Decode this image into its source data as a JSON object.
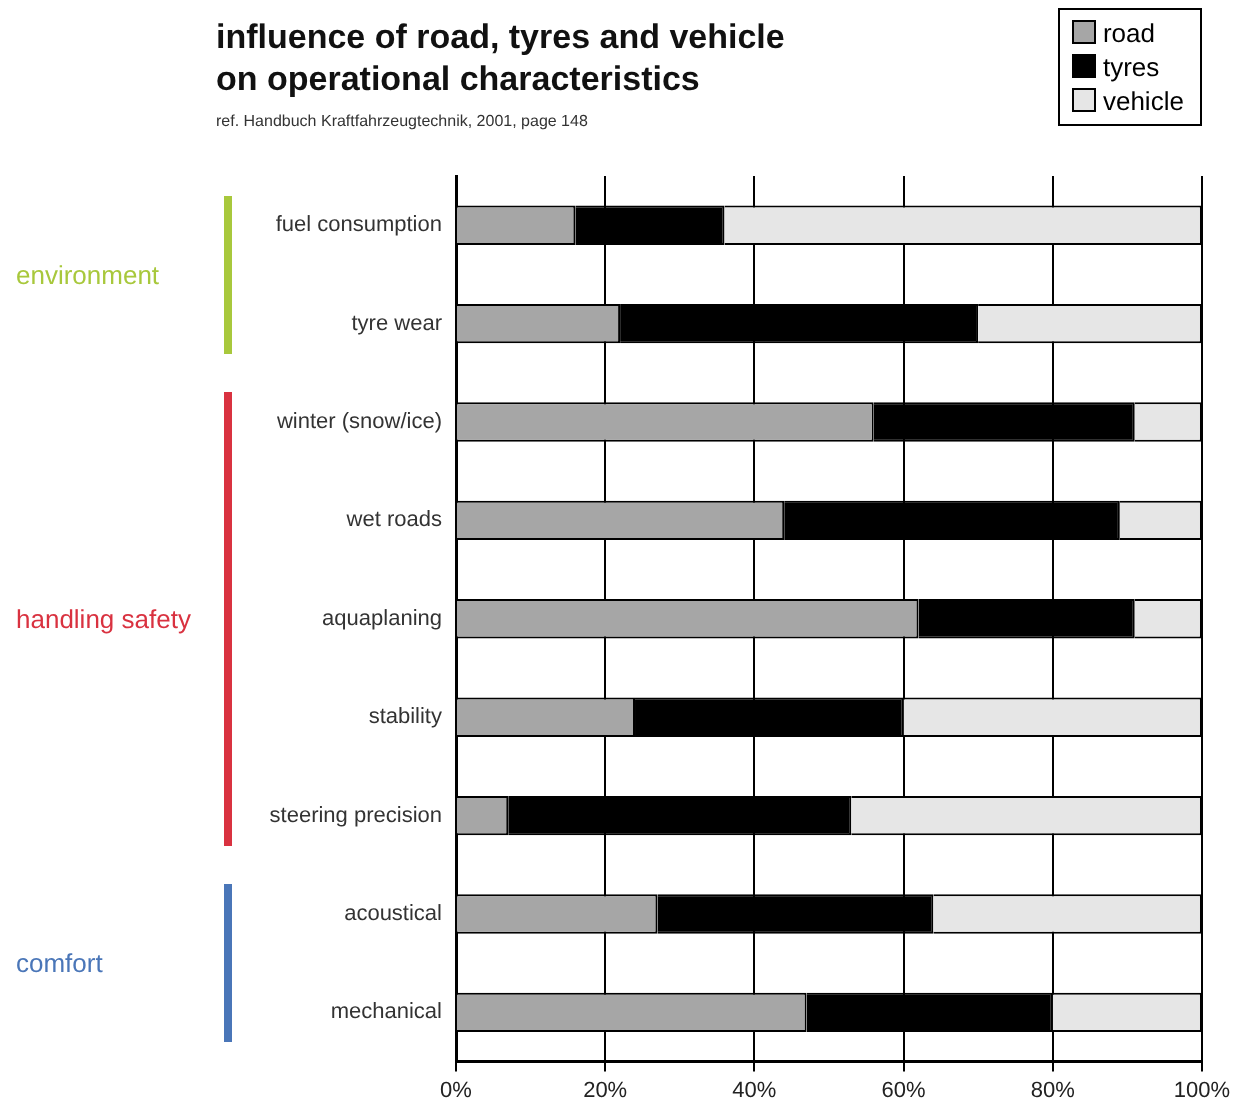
{
  "chart_data": {
    "type": "bar",
    "orientation": "horizontal",
    "stacked": true,
    "title": "influence of road, tyres and vehicle on operational characteristics",
    "annotations": [
      "ref. Handbuch Kraftfahrzeugtechnik, 2001, page 148",
      "environment",
      "handling safety",
      "comfort"
    ],
    "categories": [
      "fuel consumption",
      "tyre wear",
      "winter (snow/ice)",
      "wet roads",
      "aquaplaning",
      "stability",
      "steering precision",
      "acoustical",
      "mechanical"
    ],
    "series": [
      {
        "name": "road",
        "color": "#a6a6a6",
        "values": [
          16,
          22,
          56,
          44,
          62,
          24,
          7,
          27,
          47
        ]
      },
      {
        "name": "tyres",
        "color": "#000000",
        "values": [
          20,
          48,
          35,
          45,
          29,
          36,
          46,
          37,
          33
        ]
      },
      {
        "name": "vehicle",
        "color": "#e6e6e6",
        "values": [
          64,
          30,
          9,
          11,
          9,
          40,
          47,
          36,
          20
        ]
      }
    ],
    "xlim": [
      0,
      100
    ],
    "xticks": [
      {
        "value": 0,
        "label": "0%"
      },
      {
        "value": 20,
        "label": "20%"
      },
      {
        "value": 40,
        "label": "40%"
      },
      {
        "value": 60,
        "label": "60%"
      },
      {
        "value": 80,
        "label": "80%"
      },
      {
        "value": 100,
        "label": "100%"
      }
    ],
    "grid": "x",
    "legend": "top right"
  }
}
